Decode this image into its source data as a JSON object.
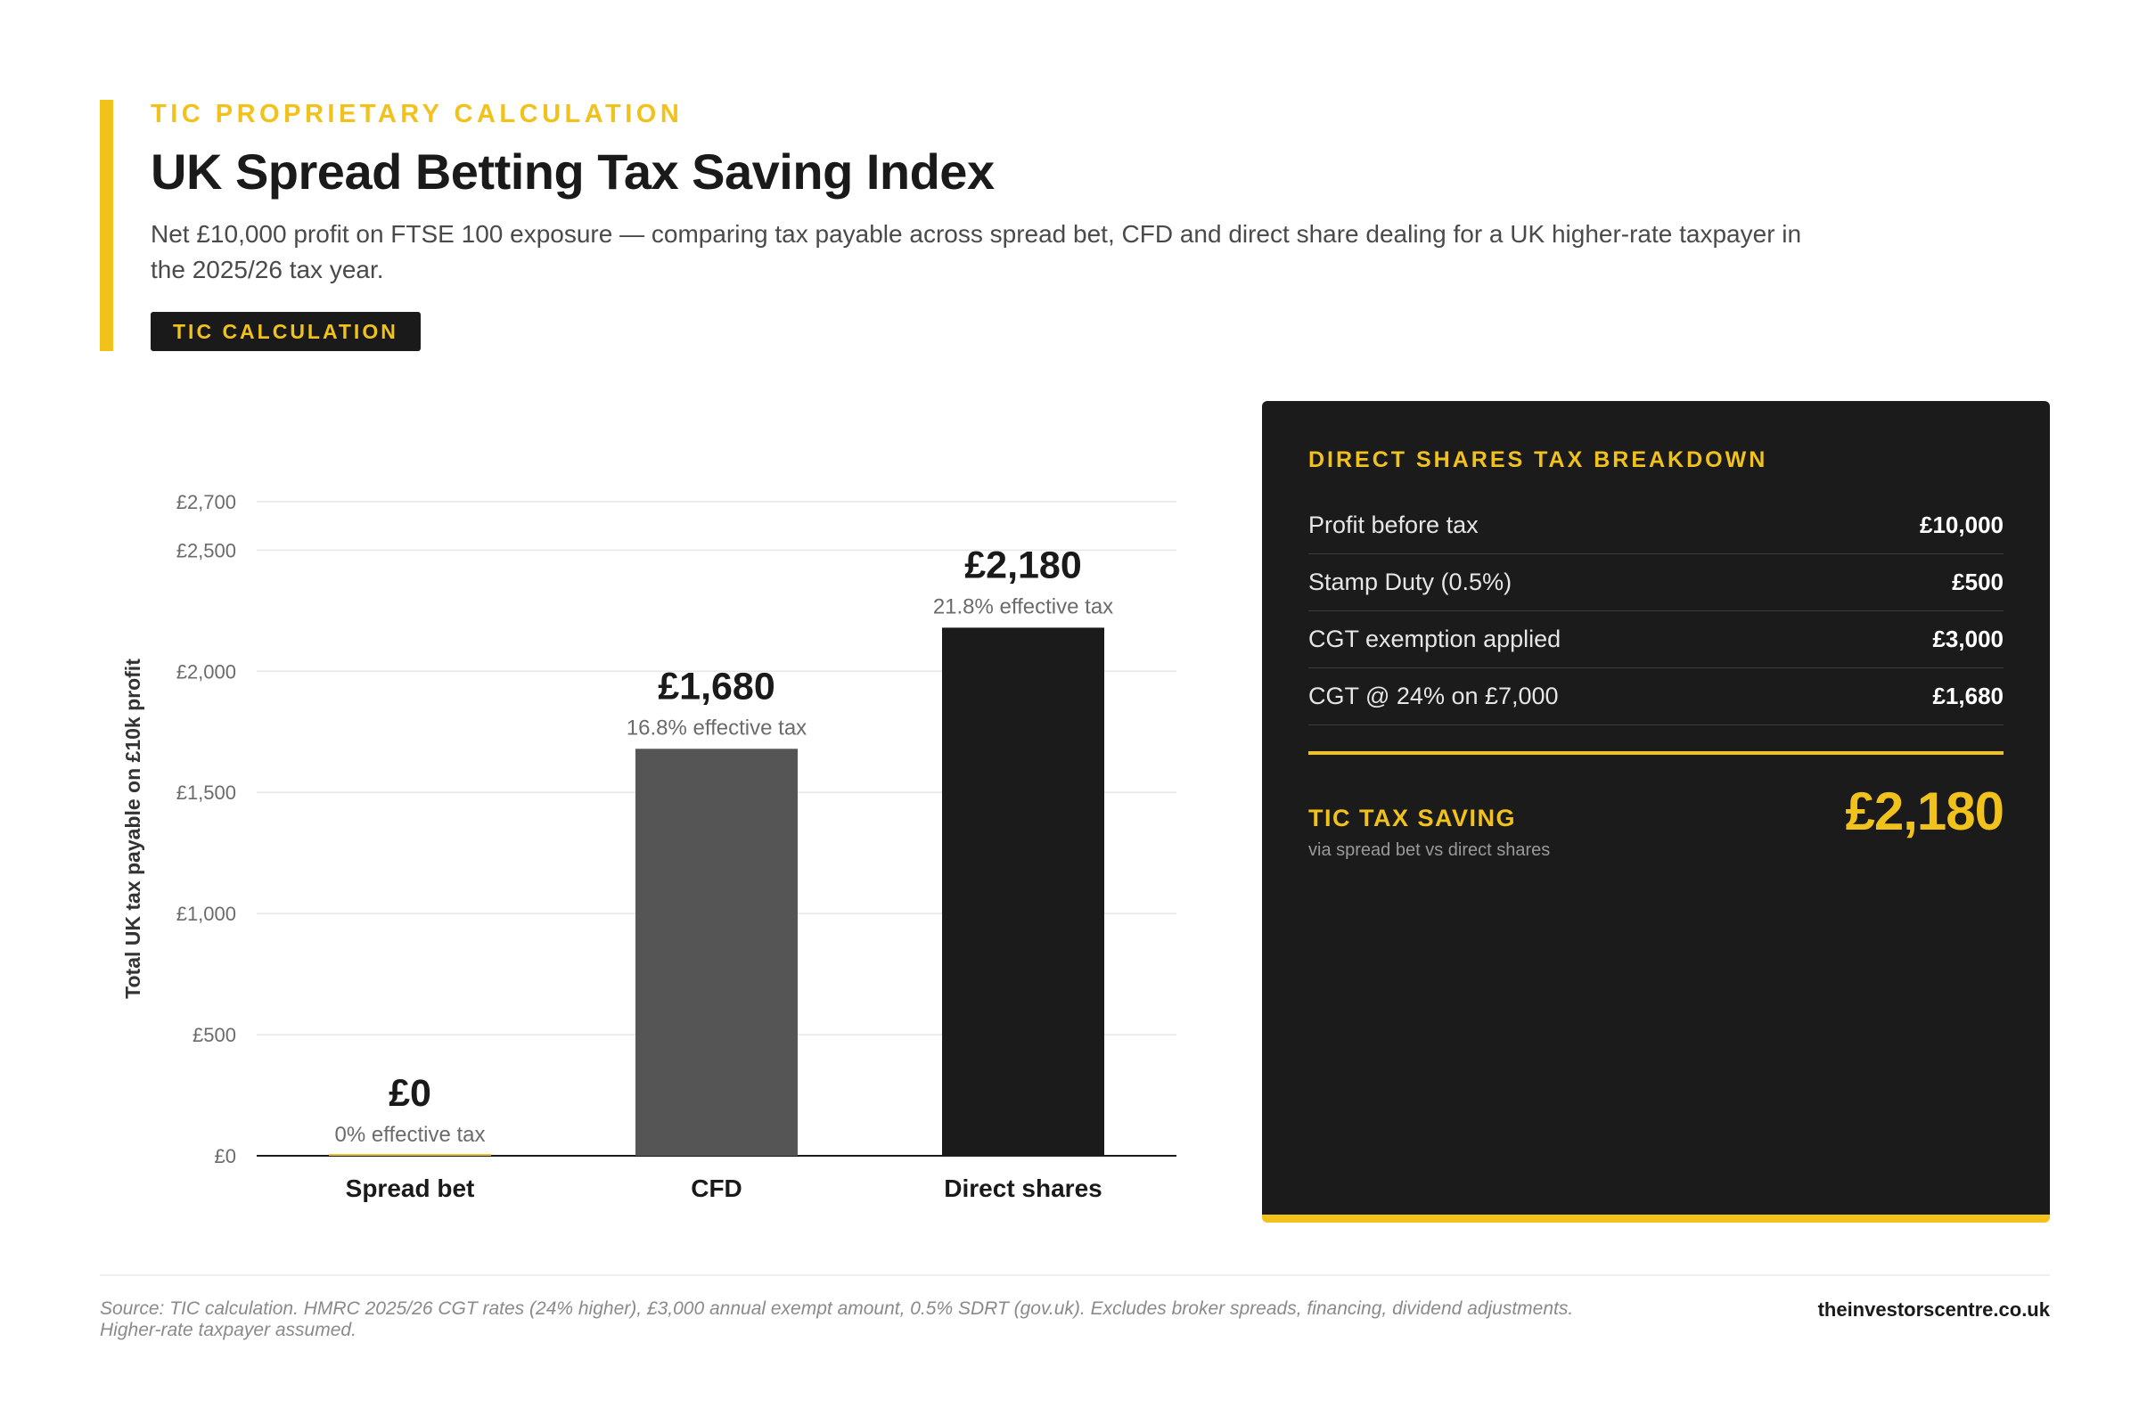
{
  "header": {
    "eyebrow": "TIC PROPRIETARY CALCULATION",
    "title": "UK Spread Betting Tax Saving Index",
    "subtitle": "Net £10,000 profit on FTSE 100 exposure — comparing tax payable across spread bet, CFD and direct share dealing for a UK higher-rate taxpayer in the 2025/26 tax year.",
    "badge": "TIC CALCULATION"
  },
  "chart_data": {
    "type": "bar",
    "title": "",
    "xlabel": "",
    "ylabel": "Total UK tax payable on £10k profit",
    "categories": [
      "Spread bet",
      "CFD",
      "Direct shares"
    ],
    "values": [
      0,
      1680,
      2180
    ],
    "value_labels": [
      "£0",
      "£1,680",
      "£2,180"
    ],
    "sub_labels": [
      "0% effective tax",
      "16.8% effective tax",
      "21.8% effective tax"
    ],
    "colors": [
      "#f1c21b",
      "#555555",
      "#1b1b1b"
    ],
    "ylim": [
      0,
      2700
    ],
    "yticks": [
      0,
      500,
      1000,
      1500,
      2000,
      2500,
      2700
    ],
    "ytick_labels": [
      "£0",
      "£500",
      "£1,000",
      "£1,500",
      "£2,000",
      "£2,500",
      "£2,700"
    ],
    "grid": true,
    "legend": "none"
  },
  "panel": {
    "title": "DIRECT SHARES TAX BREAKDOWN",
    "rows": [
      {
        "label": "Profit before tax",
        "value": "£10,000"
      },
      {
        "label": "Stamp Duty (0.5%)",
        "value": "£500"
      },
      {
        "label": "CGT exemption applied",
        "value": "£3,000"
      },
      {
        "label": "CGT @ 24% on £7,000",
        "value": "£1,680"
      }
    ],
    "saving_label": "TIC TAX SAVING",
    "saving_note": "via spread bet vs direct shares",
    "saving_value": "£2,180"
  },
  "footer": {
    "source": "Source: TIC calculation. HMRC 2025/26 CGT rates (24% higher), £3,000 annual exempt amount, 0.5% SDRT (gov.uk). Excludes broker spreads, financing, dividend adjustments. Higher-rate taxpayer assumed.",
    "site": "theinvestorscentre.co.uk"
  },
  "colors": {
    "accent": "#f1c21b",
    "dark": "#1b1b1b",
    "cfd_bar": "#555555"
  }
}
